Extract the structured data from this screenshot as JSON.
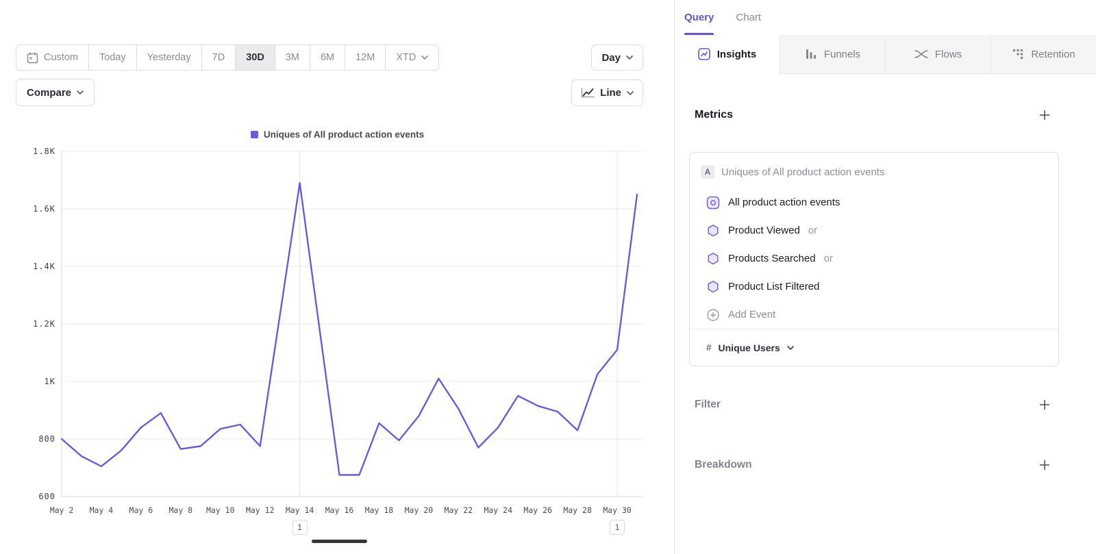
{
  "toolbar": {
    "date_ranges": [
      {
        "label": "Custom",
        "selected": false
      },
      {
        "label": "Today",
        "selected": false
      },
      {
        "label": "Yesterday",
        "selected": false
      },
      {
        "label": "7D",
        "selected": false
      },
      {
        "label": "30D",
        "selected": true
      },
      {
        "label": "3M",
        "selected": false
      },
      {
        "label": "6M",
        "selected": false
      },
      {
        "label": "12M",
        "selected": false
      },
      {
        "label": "XTD",
        "selected": false
      }
    ],
    "granularity": "Day",
    "compare_label": "Compare",
    "chart_type": "Line"
  },
  "legend": {
    "label": "Uniques of All product action events"
  },
  "chart_data": {
    "type": "line",
    "title": "",
    "series_name": "Uniques of All product action events",
    "x": [
      "May 2",
      "May 3",
      "May 4",
      "May 5",
      "May 6",
      "May 7",
      "May 8",
      "May 9",
      "May 10",
      "May 11",
      "May 12",
      "May 13",
      "May 14",
      "May 15",
      "May 16",
      "May 17",
      "May 18",
      "May 19",
      "May 20",
      "May 21",
      "May 22",
      "May 23",
      "May 24",
      "May 25",
      "May 26",
      "May 27",
      "May 28",
      "May 29",
      "May 30",
      "May 31"
    ],
    "values": [
      800,
      740,
      705,
      760,
      840,
      890,
      765,
      775,
      835,
      850,
      775,
      1230,
      1690,
      1180,
      675,
      675,
      855,
      795,
      880,
      1010,
      905,
      770,
      840,
      950,
      915,
      895,
      830,
      1025,
      1110,
      1650
    ],
    "ylim": [
      600,
      1800
    ],
    "yticks": [
      600,
      800,
      1000,
      1200,
      1400,
      1600,
      1800
    ],
    "ytick_labels": [
      "600",
      "800",
      "1K",
      "1.2K",
      "1.4K",
      "1.6K",
      "1.8K"
    ],
    "xtick_every": 2,
    "vgrid_indices": [
      12,
      28
    ],
    "grid": true,
    "legend_position": "top-center",
    "line_color": "#6a5ae0",
    "annotations": [
      {
        "index": 12,
        "label": "1"
      },
      {
        "index": 28,
        "label": "1"
      }
    ]
  },
  "query_panel": {
    "top_tabs": [
      {
        "label": "Query",
        "active": true
      },
      {
        "label": "Chart",
        "active": false
      }
    ],
    "report_tabs": [
      {
        "label": "Insights",
        "active": true
      },
      {
        "label": "Funnels",
        "active": false
      },
      {
        "label": "Flows",
        "active": false
      },
      {
        "label": "Retention",
        "active": false
      }
    ],
    "metrics": {
      "title": "Metrics",
      "card": {
        "badge": "A",
        "badge_label": "Uniques of All product action events",
        "events": [
          {
            "label": "All product action events",
            "suffix": ""
          },
          {
            "label": "Product Viewed",
            "suffix": "or"
          },
          {
            "label": "Products Searched",
            "suffix": "or"
          },
          {
            "label": "Product List Filtered",
            "suffix": ""
          }
        ],
        "add_event_label": "Add Event",
        "aggregation": {
          "symbol": "#",
          "label": "Unique Users"
        }
      }
    },
    "filter": {
      "title": "Filter"
    },
    "breakdown": {
      "title": "Breakdown"
    }
  },
  "colors": {
    "accent_purple": "#6a52c7",
    "line_purple": "#6a5ae0"
  }
}
